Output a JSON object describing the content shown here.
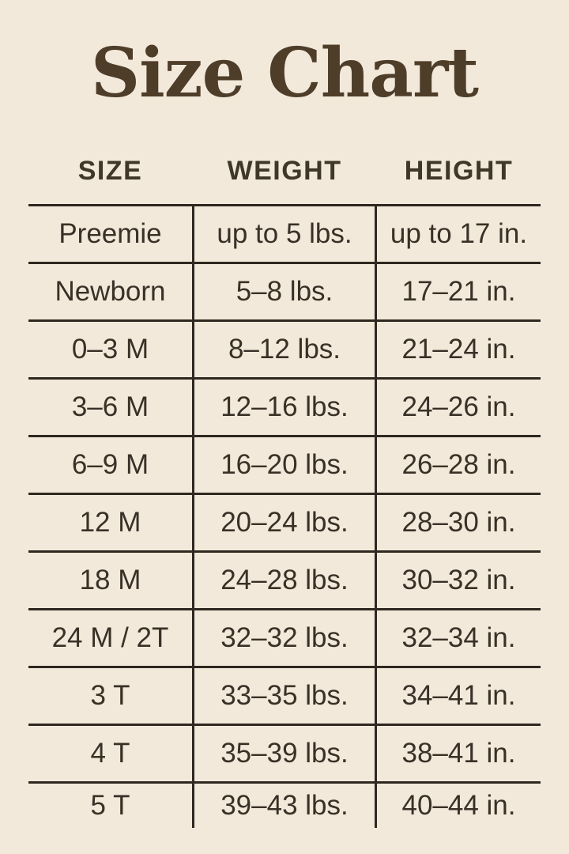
{
  "chart_data": {
    "type": "table",
    "title": "Size Chart",
    "columns": [
      "SIZE",
      "WEIGHT",
      "HEIGHT"
    ],
    "rows": [
      [
        "Preemie",
        "up to 5 lbs.",
        "up to 17 in."
      ],
      [
        "Newborn",
        "5–8 lbs.",
        "17–21 in."
      ],
      [
        "0–3 M",
        "8–12 lbs.",
        "21–24 in."
      ],
      [
        "3–6 M",
        "12–16 lbs.",
        "24–26 in."
      ],
      [
        "6–9 M",
        "16–20 lbs.",
        "26–28 in."
      ],
      [
        "12 M",
        "20–24 lbs.",
        "28–30 in."
      ],
      [
        "18 M",
        "24–28 lbs.",
        "30–32 in."
      ],
      [
        "24 M / 2T",
        "32–32 lbs.",
        "32–34 in."
      ],
      [
        "3 T",
        "33–35 lbs.",
        "34–41 in."
      ],
      [
        "4 T",
        "35–39 lbs.",
        "38–41 in."
      ],
      [
        "5 T",
        "39–43 lbs.",
        "40–44 in."
      ]
    ],
    "layout": {
      "grid": "horizontal rules between rows, vertical rules between columns, no outer side or bottom border",
      "legend": "none",
      "alignment": "all cells centered"
    }
  },
  "colors": {
    "background": "#f2e9da",
    "title": "#4e3d29",
    "header_text": "#3f372a",
    "body_text": "#393127",
    "rule": "#2e2820"
  }
}
